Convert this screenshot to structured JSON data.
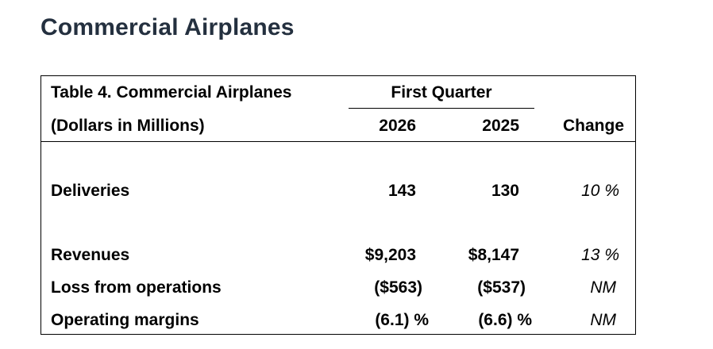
{
  "heading": "Commercial Airplanes",
  "table": {
    "title": "Table 4. Commercial Airplanes",
    "units": "(Dollars in Millions)",
    "group_header": "First Quarter",
    "columns": [
      "2026",
      "2025",
      "Change"
    ],
    "rows": [
      {
        "label": "Deliveries",
        "v2026": "143",
        "v2025": "130",
        "change": "10 %"
      },
      {
        "label": "Revenues",
        "v2026": "$9,203",
        "v2025": "$8,147",
        "change": "13 %"
      },
      {
        "label": "Loss from operations",
        "v2026": "($563)",
        "v2025": "($537)",
        "change": "NM"
      },
      {
        "label": "Operating margins",
        "v2026": "(6.1) %",
        "v2025": "(6.6) %",
        "change": "NM"
      }
    ]
  }
}
